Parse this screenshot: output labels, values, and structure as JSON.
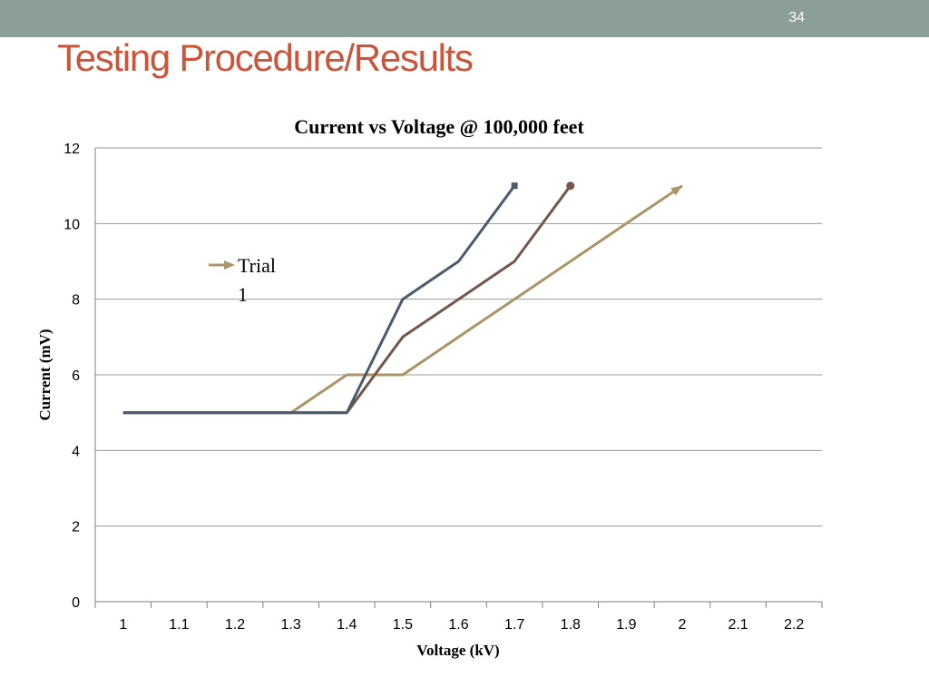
{
  "slide": {
    "number": "34",
    "title": "Testing Procedure/Results"
  },
  "chart_data": {
    "type": "line",
    "title": "Current vs Voltage @ 100,000 feet",
    "xlabel": "Voltage (kV)",
    "ylabel": "Current (mV)",
    "categories": [
      "1",
      "1.1",
      "1.2",
      "1.3",
      "1.4",
      "1.5",
      "1.6",
      "1.7",
      "1.8",
      "1.9",
      "2",
      "2.1",
      "2.2"
    ],
    "ylim": [
      0,
      12
    ],
    "yticks": [
      "0",
      "2",
      "4",
      "6",
      "8",
      "10",
      "12"
    ],
    "grid": "horizontal",
    "legend": {
      "position": "left",
      "entries": [
        "Trial 1"
      ]
    },
    "series": [
      {
        "name": "Trial 1",
        "color": "#ab9466",
        "marker": "arrow",
        "values": [
          5,
          5,
          5,
          5,
          6,
          6,
          7,
          8,
          9,
          10,
          11,
          null,
          null
        ]
      },
      {
        "color": "#76564a",
        "marker": "circle",
        "values": [
          5,
          5,
          5,
          5,
          5,
          7,
          8,
          9,
          11,
          null,
          null,
          null,
          null
        ]
      },
      {
        "color": "#485a6b",
        "marker": "square",
        "values": [
          5,
          5,
          5,
          5,
          5,
          8,
          9,
          11,
          null,
          null,
          null,
          null,
          null
        ]
      }
    ]
  }
}
